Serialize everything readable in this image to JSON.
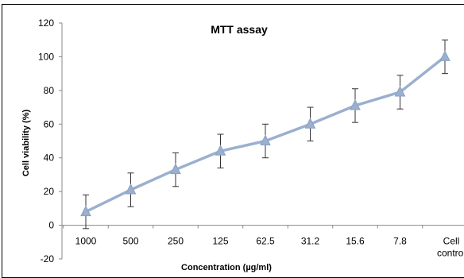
{
  "chart_data": {
    "type": "line",
    "title": "MTT assay",
    "xlabel": "Concentration (µg/ml)",
    "ylabel": "Cell viability (%)",
    "categories": [
      "1000",
      "500",
      "250",
      "125",
      "62.5",
      "31.2",
      "15.6",
      "7.8",
      "Cell control"
    ],
    "series": [
      {
        "values": [
          8,
          21,
          33,
          44,
          50,
          60,
          71,
          79,
          100
        ],
        "error": [
          10,
          10,
          10,
          10,
          10,
          10,
          10,
          10,
          10
        ],
        "color": "#9bb0cf",
        "marker": "triangle"
      }
    ],
    "ylim": [
      -20,
      120
    ],
    "yticks": [
      -20,
      0,
      20,
      40,
      60,
      80,
      100,
      120
    ],
    "grid": false,
    "legend": "none"
  }
}
